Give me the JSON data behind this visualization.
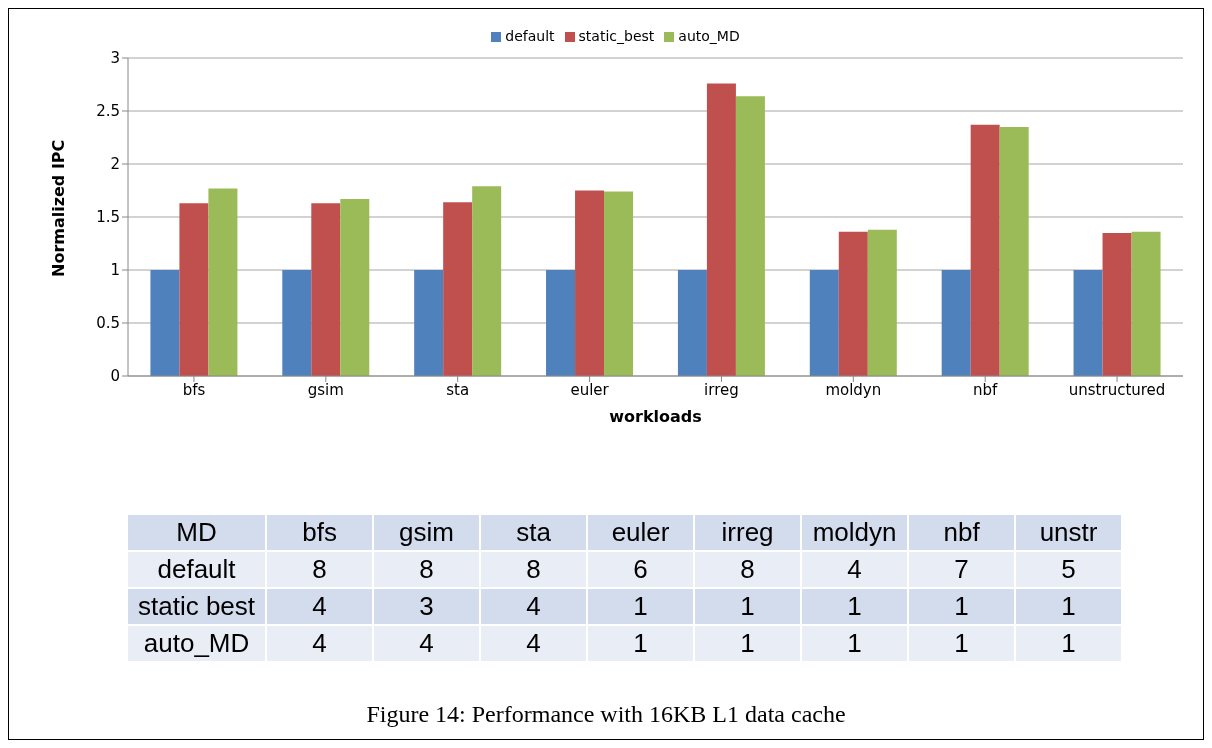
{
  "chart_data": [
    {
      "type": "bar",
      "xlabel": "workloads",
      "ylabel": "Normalized IPC",
      "categories": [
        "bfs",
        "gsim",
        "sta",
        "euler",
        "irreg",
        "moldyn",
        "nbf",
        "unstructured"
      ],
      "series": [
        {
          "name": "default",
          "color": "#4f81bd",
          "values": [
            1,
            1,
            1,
            1,
            1,
            1,
            1,
            1
          ]
        },
        {
          "name": "static_best",
          "color": "#c0504d",
          "values": [
            1.63,
            1.63,
            1.64,
            1.75,
            2.76,
            1.36,
            2.37,
            1.35
          ]
        },
        {
          "name": "auto_MD",
          "color": "#9bbb59",
          "values": [
            1.77,
            1.67,
            1.79,
            1.74,
            2.64,
            1.38,
            2.35,
            1.36
          ]
        }
      ],
      "ylim": [
        0,
        3
      ],
      "yticks": [
        0,
        0.5,
        1,
        1.5,
        2,
        2.5,
        3
      ],
      "grid": "y",
      "legend": "top"
    },
    {
      "type": "heatmap",
      "ylabel": "MD",
      "categories": [
        "bfs",
        "gsim",
        "sta",
        "euler",
        "irreg",
        "moldyn",
        "nbf",
        "unstr"
      ],
      "y_categories": [
        "default",
        "static best",
        "auto_MD"
      ],
      "cells": [
        [
          8,
          8,
          8,
          6,
          8,
          4,
          7,
          5
        ],
        [
          4,
          3,
          4,
          1,
          1,
          1,
          1,
          1
        ],
        [
          4,
          4,
          4,
          1,
          1,
          1,
          1,
          1
        ]
      ],
      "data_labels": true,
      "annotations": [
        "Figure 14: Performance with 16KB L1 data cache"
      ]
    }
  ]
}
